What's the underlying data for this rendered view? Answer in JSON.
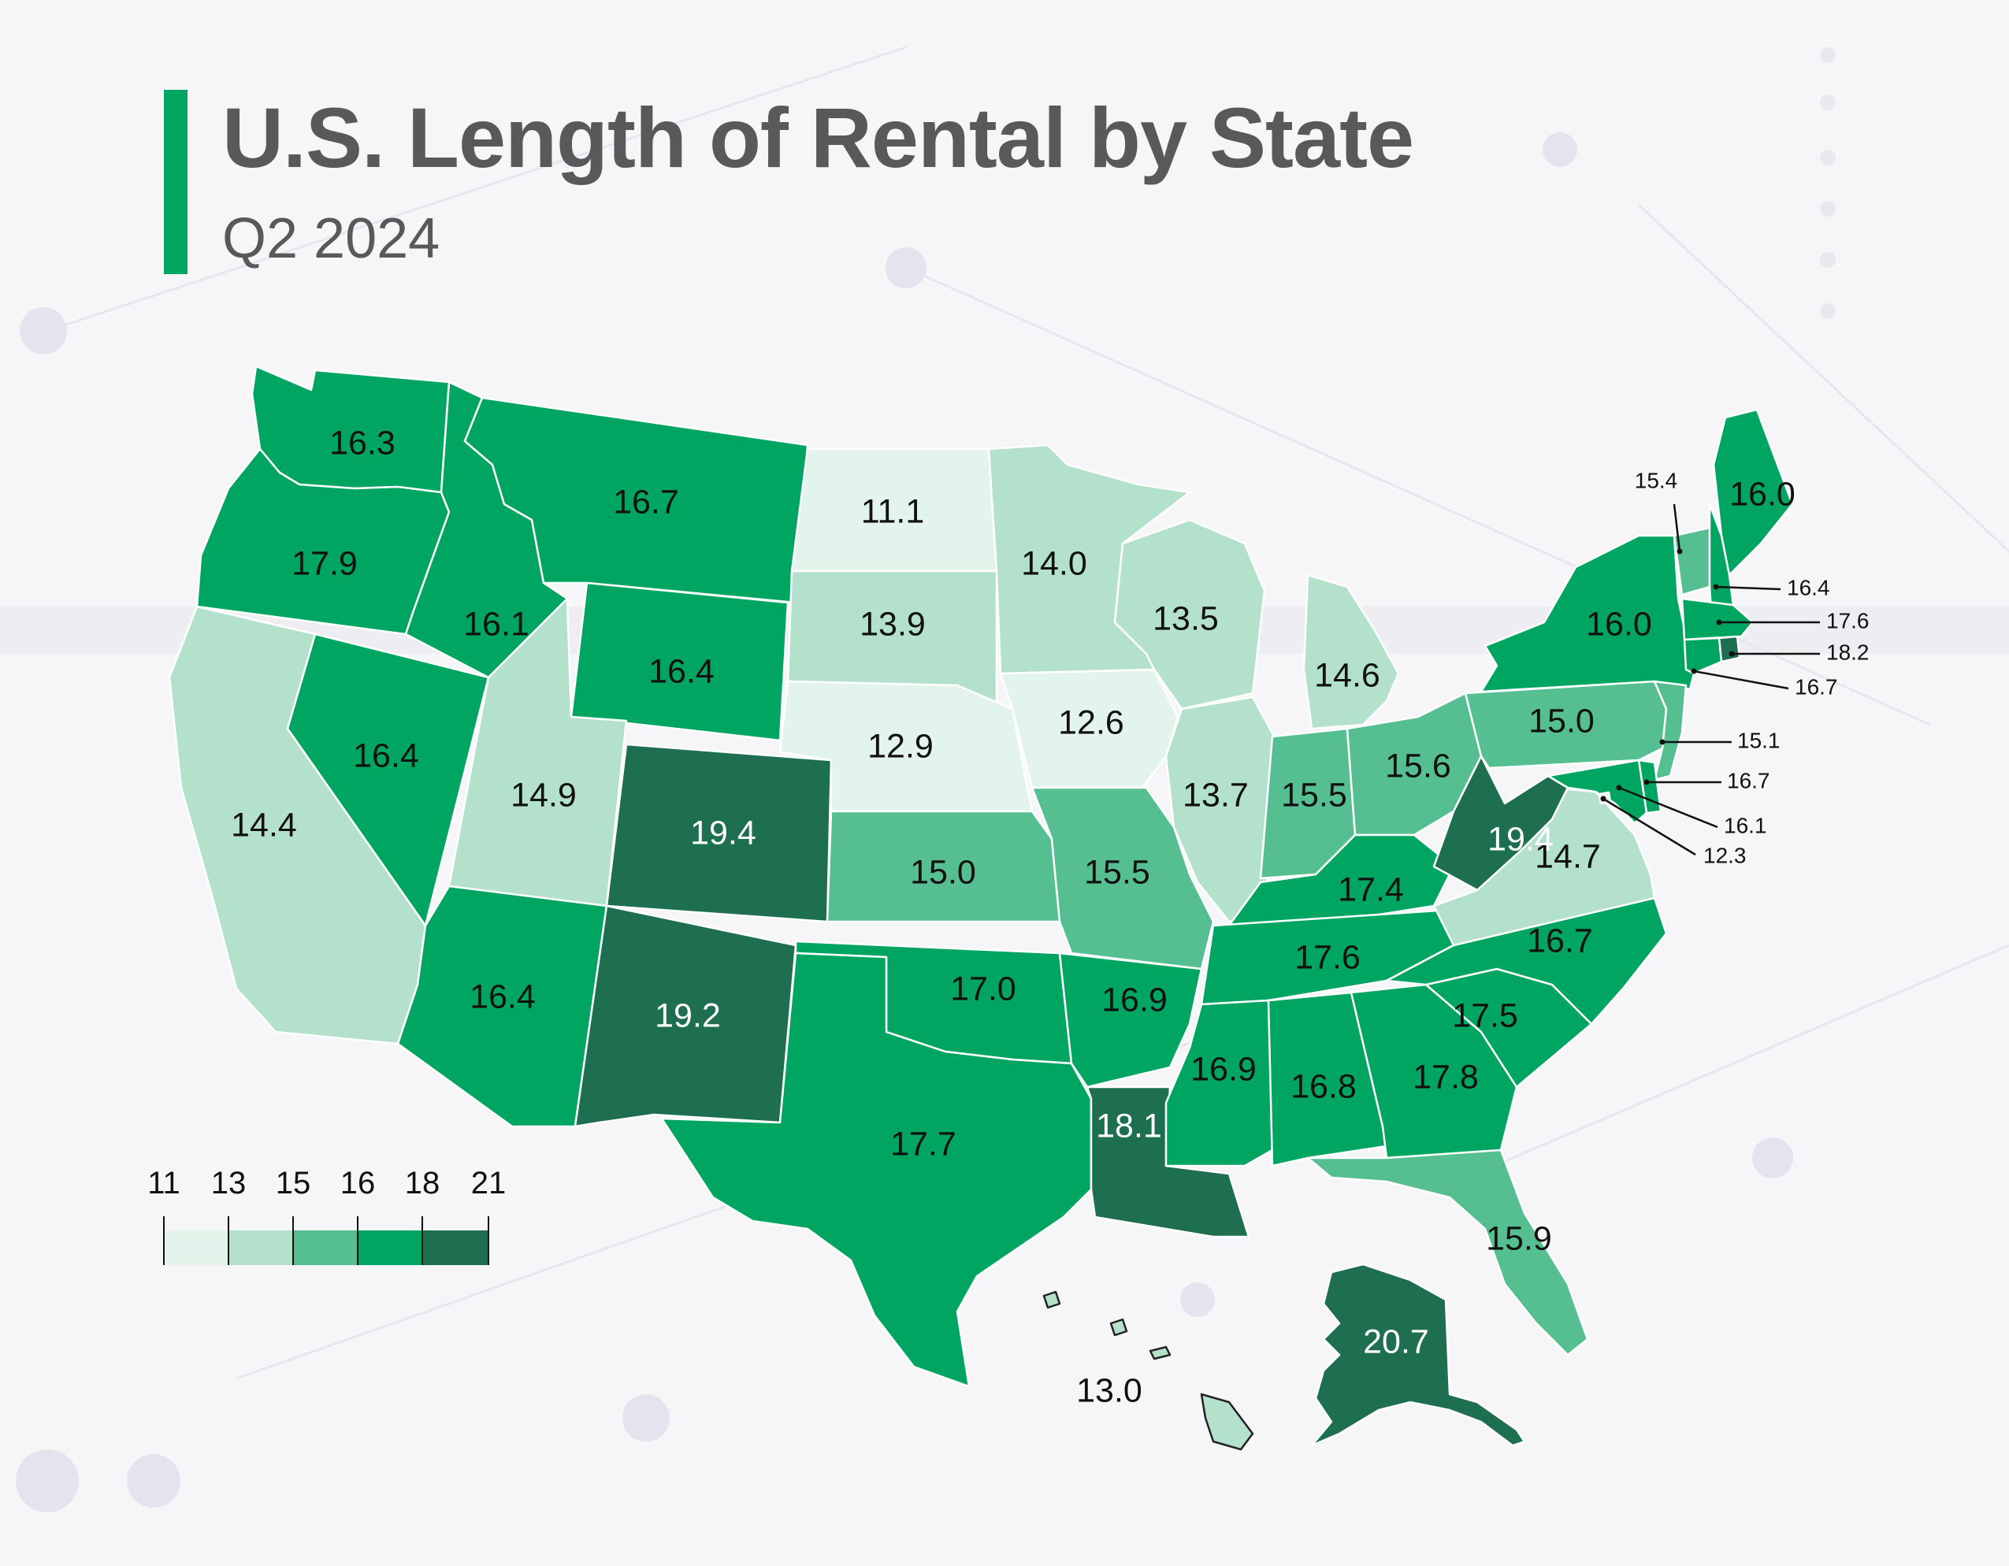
{
  "title": "U.S. Length of Rental by State",
  "subtitle": "Q2 2024",
  "colors": {
    "accent": "#00a562",
    "bin_11_13": "#e2f4ec",
    "bin_13_15": "#b3e1cb",
    "bin_15_16": "#55bf92",
    "bin_16_18": "#00a562",
    "bin_18_21": "#1e6e50"
  },
  "legend": {
    "ticks": [
      "11",
      "13",
      "15",
      "16",
      "18",
      "21"
    ]
  },
  "chart_data": {
    "type": "choropleth",
    "title": "U.S. Length of Rental by State",
    "subtitle": "Q2 2024",
    "bins": [
      11,
      13,
      15,
      16,
      18,
      21
    ],
    "states": [
      {
        "state": "WA",
        "value": "16.3"
      },
      {
        "state": "OR",
        "value": "17.9"
      },
      {
        "state": "CA",
        "value": "14.4"
      },
      {
        "state": "NV",
        "value": "16.4"
      },
      {
        "state": "ID",
        "value": "16.1"
      },
      {
        "state": "MT",
        "value": "16.7"
      },
      {
        "state": "WY",
        "value": "16.4"
      },
      {
        "state": "UT",
        "value": "14.9"
      },
      {
        "state": "AZ",
        "value": "16.4"
      },
      {
        "state": "CO",
        "value": "19.4"
      },
      {
        "state": "NM",
        "value": "19.2"
      },
      {
        "state": "ND",
        "value": "11.1"
      },
      {
        "state": "SD",
        "value": "13.9"
      },
      {
        "state": "NE",
        "value": "12.9"
      },
      {
        "state": "KS",
        "value": "15.0"
      },
      {
        "state": "OK",
        "value": "17.0"
      },
      {
        "state": "TX",
        "value": "17.7"
      },
      {
        "state": "MN",
        "value": "14.0"
      },
      {
        "state": "IA",
        "value": "12.6"
      },
      {
        "state": "MO",
        "value": "15.5"
      },
      {
        "state": "AR",
        "value": "16.9"
      },
      {
        "state": "LA",
        "value": "18.1"
      },
      {
        "state": "WI",
        "value": "13.5"
      },
      {
        "state": "IL",
        "value": "13.7"
      },
      {
        "state": "MI",
        "value": "14.6"
      },
      {
        "state": "IN",
        "value": "15.5"
      },
      {
        "state": "OH",
        "value": "15.6"
      },
      {
        "state": "KY",
        "value": "17.4"
      },
      {
        "state": "TN",
        "value": "17.6"
      },
      {
        "state": "MS",
        "value": "16.9"
      },
      {
        "state": "AL",
        "value": "16.8"
      },
      {
        "state": "GA",
        "value": "17.8"
      },
      {
        "state": "FL",
        "value": "15.9"
      },
      {
        "state": "SC",
        "value": "17.5"
      },
      {
        "state": "NC",
        "value": "16.7"
      },
      {
        "state": "VA",
        "value": "14.7"
      },
      {
        "state": "WV",
        "value": "19.4"
      },
      {
        "state": "PA",
        "value": "15.0"
      },
      {
        "state": "NY",
        "value": "16.0"
      },
      {
        "state": "ME",
        "value": "16.0"
      },
      {
        "state": "VT",
        "value": "15.4"
      },
      {
        "state": "NH",
        "value": "16.4"
      },
      {
        "state": "MA",
        "value": "17.6"
      },
      {
        "state": "RI",
        "value": "18.2"
      },
      {
        "state": "CT",
        "value": "16.7"
      },
      {
        "state": "NJ",
        "value": "15.1"
      },
      {
        "state": "DE",
        "value": "16.7"
      },
      {
        "state": "MD",
        "value": "16.1"
      },
      {
        "state": "DC",
        "value": "12.3"
      },
      {
        "state": "HI",
        "value": "13.0"
      },
      {
        "state": "AK",
        "value": "20.7"
      }
    ]
  }
}
